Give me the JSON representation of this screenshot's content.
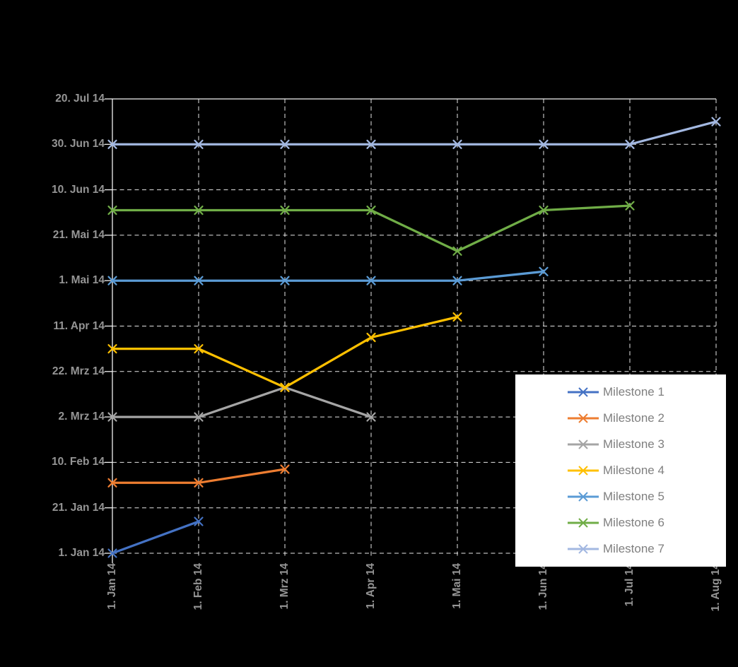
{
  "chart_data": {
    "type": "line",
    "title": "",
    "description": "Milestone trend analysis chart, dates on both axes, X markers, dark background",
    "categories": [
      "1. Jan 14",
      "1. Feb 14",
      "1. Mrz 14",
      "1. Apr 14",
      "1. Mai 14",
      "1. Jun 14",
      "1. Jul 14",
      "1. Aug 14"
    ],
    "x_axis": {
      "label": "",
      "tick_label_rotation_deg": 90
    },
    "y_axis": {
      "label": "",
      "max_days": 200,
      "ticks_top_to_bottom": [
        {
          "label": "20. Jul 14",
          "days": 200
        },
        {
          "label": "30. Jun 14",
          "days": 180
        },
        {
          "label": "10. Jun 14",
          "days": 160
        },
        {
          "label": "21. Mai 14",
          "days": 140
        },
        {
          "label": "1. Mai 14",
          "days": 120
        },
        {
          "label": "11. Apr 14",
          "days": 100
        },
        {
          "label": "22. Mrz 14",
          "days": 80
        },
        {
          "label": "2. Mrz 14",
          "days": 60
        },
        {
          "label": "10. Feb 14",
          "days": 40
        },
        {
          "label": "21. Jan 14",
          "days": 20
        },
        {
          "label": "1. Jan 14",
          "days": 0
        }
      ]
    },
    "series": [
      {
        "name": "Milestone 1",
        "color": "#4472C4",
        "values_days": [
          0,
          14
        ],
        "values_dates": [
          "1. Jan 14",
          "15. Jan 14"
        ]
      },
      {
        "name": "Milestone 2",
        "color": "#ED7D31",
        "values_days": [
          31,
          31,
          37
        ],
        "values_dates": [
          "1. Feb 14",
          "1. Feb 14",
          "7. Feb 14"
        ]
      },
      {
        "name": "Milestone 3",
        "color": "#A5A5A5",
        "values_days": [
          60,
          60,
          73,
          60
        ],
        "values_dates": [
          "2. Mrz 14",
          "2. Mrz 14",
          "15. Mrz 14",
          "2. Mrz 14"
        ]
      },
      {
        "name": "Milestone 4",
        "color": "#FFC000",
        "values_days": [
          90,
          90,
          73,
          95,
          104
        ],
        "values_dates": [
          "1. Apr 14",
          "1. Apr 14",
          "15. Mrz 14",
          "6. Apr 14",
          "15. Apr 14"
        ]
      },
      {
        "name": "Milestone 5",
        "color": "#5B9BD5",
        "values_days": [
          120,
          120,
          120,
          120,
          120,
          124
        ],
        "values_dates": [
          "1. Mai 14",
          "1. Mai 14",
          "1. Mai 14",
          "1. Mai 14",
          "1. Mai 14",
          "5. Mai 14"
        ]
      },
      {
        "name": "Milestone 6",
        "color": "#70AD47",
        "values_days": [
          151,
          151,
          151,
          151,
          133,
          151,
          153
        ],
        "values_dates": [
          "1. Jun 14",
          "1. Jun 14",
          "1. Jun 14",
          "1. Jun 14",
          "14. Mai 14",
          "1. Jun 14",
          "3. Jun 14"
        ]
      },
      {
        "name": "Milestone 7",
        "color": "#A3B8E1",
        "values_days": [
          180,
          180,
          180,
          180,
          180,
          180,
          180,
          190
        ],
        "values_dates": [
          "30. Jun 14",
          "30. Jun 14",
          "30. Jun 14",
          "30. Jun 14",
          "30. Jun 14",
          "30. Jun 14",
          "30. Jun 14",
          "10. Jul 14"
        ]
      }
    ],
    "legend": {
      "position": "bottom-right-overlay",
      "background": "#FFFFFF",
      "text_color": "#7F7F7F"
    },
    "style": {
      "background": "#000000",
      "gridline_color": "#E6E6E6",
      "gridline_style": "dashed",
      "axis_line_color": "#F2F2F2",
      "axis_label_color": "#959595",
      "marker": "x-cross"
    }
  }
}
